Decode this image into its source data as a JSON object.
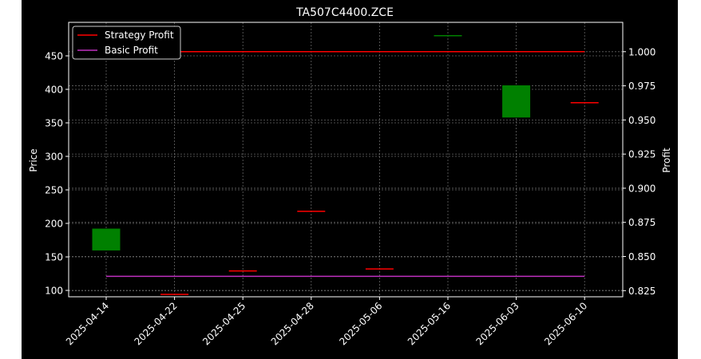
{
  "chart_data": {
    "type": "candlestick",
    "title": "TA507C4400.ZCE",
    "xlabel": "",
    "ylabel": "Price",
    "y2label": "Profit",
    "categories": [
      "2025-04-14",
      "2025-04-22",
      "2025-04-25",
      "2025-04-28",
      "2025-05-06",
      "2025-05-16",
      "2025-06-03",
      "2025-06-10"
    ],
    "ohlc": [
      {
        "date": "2025-04-14",
        "open": 159.6,
        "close": 192.2,
        "high": 192.2,
        "low": 159.6,
        "color": "green"
      },
      {
        "date": "2025-04-22",
        "open": 94.0,
        "close": 94.0,
        "high": 94.0,
        "low": 94.0,
        "color": "red"
      },
      {
        "date": "2025-04-25",
        "open": 129.0,
        "close": 129.0,
        "high": 129.0,
        "low": 129.0,
        "color": "red"
      },
      {
        "date": "2025-04-28",
        "open": 218.0,
        "close": 218.0,
        "high": 218.0,
        "low": 218.0,
        "color": "red"
      },
      {
        "date": "2025-05-06",
        "open": 132.0,
        "close": 132.0,
        "high": 132.0,
        "low": 132.0,
        "color": "red"
      },
      {
        "date": "2025-05-16",
        "open": 480.0,
        "close": 480.0,
        "high": 480.0,
        "low": 480.0,
        "color": "green"
      },
      {
        "date": "2025-06-03",
        "open": 358.0,
        "close": 406.0,
        "high": 406.0,
        "low": 358.0,
        "color": "green"
      },
      {
        "date": "2025-06-10",
        "open": 380.0,
        "close": 380.0,
        "high": 380.0,
        "low": 380.0,
        "color": "red"
      }
    ],
    "series": [
      {
        "name": "Strategy Profit",
        "axis": "right",
        "color": "#ff0000",
        "values": [
          1.0,
          1.0,
          1.0,
          1.0,
          1.0,
          1.0,
          1.0,
          1.0
        ]
      },
      {
        "name": "Basic Profit",
        "axis": "right",
        "color": "#c030c0",
        "values": [
          0.8355,
          0.8355,
          0.8355,
          0.8355,
          0.8355,
          0.8355,
          0.8355,
          0.8355
        ]
      }
    ],
    "ylim": [
      90.5,
      500
    ],
    "y2lim": [
      0.8205,
      1.0215
    ],
    "yticks": [
      100,
      150,
      200,
      250,
      300,
      350,
      400,
      450
    ],
    "y2ticks": [
      "0.825",
      "0.850",
      "0.875",
      "0.900",
      "0.925",
      "0.950",
      "0.975",
      "1.000"
    ],
    "grid": true,
    "legend": "top-left",
    "colors": {
      "background": "#000000",
      "up": "#008000",
      "down": "#ff0000",
      "text": "#ffffff",
      "grid": "#808080"
    }
  }
}
